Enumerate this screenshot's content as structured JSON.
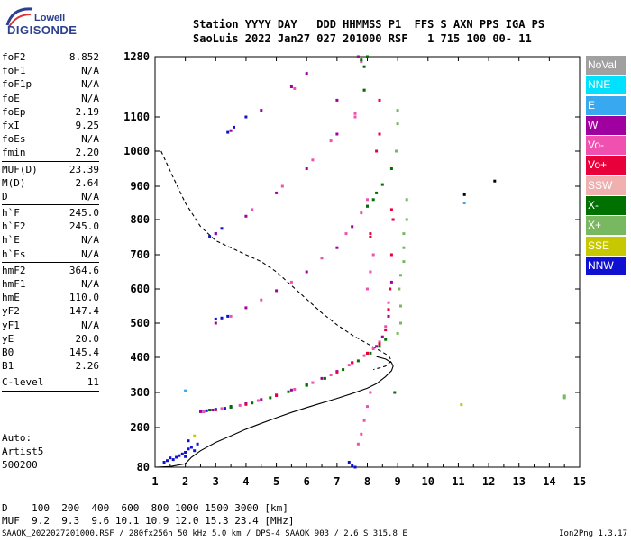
{
  "logo": {
    "line1": "Lowell",
    "line2": "DIGISONDE"
  },
  "header": {
    "row1": [
      "Station",
      "YYYY",
      "DAY",
      "DDD",
      "HHMMSS",
      "P1",
      "FFS",
      "S",
      "AXN",
      "PPS",
      "IGA",
      "PS"
    ],
    "row2": [
      "SaoLuis",
      "2022",
      "Jan27",
      "027",
      "201000",
      "RSF",
      "1",
      "715",
      "100",
      "00-",
      "11"
    ],
    "row1_text": "Station YYYY DAY   DDD HHMMSS P1  FFS S AXN PPS IGA PS",
    "row2_text": "SaoLuis 2022 Jan27 027 201000 RSF   1 715 100 00- 11"
  },
  "params": [
    [
      {
        "k": "foF2",
        "v": "8.852"
      },
      {
        "k": "foF1",
        "v": "N/A"
      },
      {
        "k": "foF1p",
        "v": "N/A"
      },
      {
        "k": "foE",
        "v": "N/A"
      },
      {
        "k": "foEp",
        "v": "2.19"
      },
      {
        "k": "fxI",
        "v": "9.25"
      },
      {
        "k": "foEs",
        "v": "N/A"
      },
      {
        "k": "fmin",
        "v": "2.20"
      }
    ],
    [
      {
        "k": "MUF(D)",
        "v": "23.39"
      },
      {
        "k": "M(D)",
        "v": "2.64"
      },
      {
        "k": "D",
        "v": "N/A"
      }
    ],
    [
      {
        "k": "h`F",
        "v": "245.0"
      },
      {
        "k": "h`F2",
        "v": "245.0"
      },
      {
        "k": "h`E",
        "v": "N/A"
      },
      {
        "k": "h`Es",
        "v": "N/A"
      }
    ],
    [
      {
        "k": "hmF2",
        "v": "364.6"
      },
      {
        "k": "hmF1",
        "v": "N/A"
      },
      {
        "k": "hmE",
        "v": "110.0"
      },
      {
        "k": "yF2",
        "v": "147.4"
      },
      {
        "k": "yF1",
        "v": "N/A"
      },
      {
        "k": "yE",
        "v": "20.0"
      },
      {
        "k": "B0",
        "v": "145.4"
      },
      {
        "k": "B1",
        "v": "2.26"
      }
    ],
    [
      {
        "k": "C-level",
        "v": "11"
      }
    ]
  ],
  "misc": {
    "auto": "Auto:",
    "artist": "Artist5",
    "code": "500200"
  },
  "legend": [
    {
      "label": "NoVal",
      "color": "#a0a0a0"
    },
    {
      "label": "NNE",
      "color": "#00e0ff"
    },
    {
      "label": "E",
      "color": "#38a8f0"
    },
    {
      "label": "W",
      "color": "#a000a0"
    },
    {
      "label": "Vo-",
      "color": "#f050b0"
    },
    {
      "label": "Vo+",
      "color": "#e8003a"
    },
    {
      "label": "SSW",
      "color": "#f0b0b0"
    },
    {
      "label": "X-",
      "color": "#007000"
    },
    {
      "label": "X+",
      "color": "#78b860"
    },
    {
      "label": "SSE",
      "color": "#c8c800"
    },
    {
      "label": "NNW",
      "color": "#1010d0"
    }
  ],
  "footer": {
    "d_label": "D",
    "d_values": [
      "100",
      "200",
      "400",
      "600",
      "800",
      "1000",
      "1500",
      "3000"
    ],
    "d_unit": "[km]",
    "muf_label": "MUF",
    "muf_values": [
      "9.2",
      "9.3",
      "9.6",
      "10.1",
      "10.9",
      "12.0",
      "15.3",
      "23.4"
    ],
    "muf_unit": "[MHz]",
    "d_text": "D    100  200  400  600  800 1000 1500 3000 [km]",
    "muf_text": "MUF  9.2  9.3  9.6 10.1 10.9 12.0 15.3 23.4 [MHz]",
    "fileinfo": "SAAOK_2022027201000.RSF / 280fx256h 50 kHz 5.0 km / DPS-4 SAAOK 903 / 2.6 S 315.8 E",
    "version": "Ion2Png 1.3.17"
  },
  "chart_data": {
    "type": "scatter",
    "xlabel": "",
    "ylabel": "",
    "xlim": [
      1,
      15
    ],
    "ylim": [
      80,
      1280
    ],
    "xticks": [
      "1",
      "2",
      "3",
      "4",
      "5",
      "6",
      "7",
      "8",
      "9",
      "10",
      "11",
      "12",
      "13",
      "14",
      "15"
    ],
    "yticks": [
      "80",
      "200",
      "300",
      "400",
      "500",
      "600",
      "700",
      "800",
      "900",
      "1000",
      "1100",
      "1280"
    ],
    "grid": false,
    "legend_position": "right",
    "series": [
      {
        "color": "#1010d0",
        "points": [
          [
            1.3,
            95
          ],
          [
            1.4,
            100
          ],
          [
            1.5,
            108
          ],
          [
            1.6,
            103
          ],
          [
            1.8,
            115
          ],
          [
            1.9,
            120
          ],
          [
            2.0,
            125
          ],
          [
            2.1,
            135
          ],
          [
            2.2,
            140
          ],
          [
            2.3,
            130
          ],
          [
            2.4,
            150
          ],
          [
            2.1,
            160
          ],
          [
            2.0,
            112
          ],
          [
            1.7,
            110
          ],
          [
            2.6,
            245
          ],
          [
            2.7,
            248
          ],
          [
            3.0,
            252
          ],
          [
            3.3,
            255
          ],
          [
            3.5,
            260
          ],
          [
            3.0,
            512
          ],
          [
            3.2,
            515
          ],
          [
            3.4,
            520
          ],
          [
            2.8,
            752
          ],
          [
            3.0,
            760
          ],
          [
            3.2,
            775
          ],
          [
            3.4,
            1055
          ],
          [
            3.6,
            1070
          ],
          [
            4.0,
            1100
          ],
          [
            7.5,
            85
          ],
          [
            7.4,
            95
          ],
          [
            7.6,
            80
          ]
        ]
      },
      {
        "color": "#a000a0",
        "points": [
          [
            2.5,
            245
          ],
          [
            2.9,
            250
          ],
          [
            3.5,
            258
          ],
          [
            4.0,
            268
          ],
          [
            4.5,
            280
          ],
          [
            5.0,
            293
          ],
          [
            5.5,
            307
          ],
          [
            6.0,
            322
          ],
          [
            6.5,
            340
          ],
          [
            7.0,
            360
          ],
          [
            7.5,
            385
          ],
          [
            8.0,
            412
          ],
          [
            8.3,
            432
          ],
          [
            8.5,
            460
          ],
          [
            8.7,
            520
          ],
          [
            8.8,
            620
          ],
          [
            8.85,
            800
          ],
          [
            3.0,
            500
          ],
          [
            4.0,
            545
          ],
          [
            5.0,
            595
          ],
          [
            6.0,
            650
          ],
          [
            7.0,
            720
          ],
          [
            7.5,
            780
          ],
          [
            8.0,
            840
          ],
          [
            3.0,
            760
          ],
          [
            4.0,
            810
          ],
          [
            5.0,
            880
          ],
          [
            6.0,
            950
          ],
          [
            7.0,
            1050
          ],
          [
            3.5,
            1060
          ],
          [
            4.5,
            1120
          ],
          [
            5.5,
            1190
          ],
          [
            6.0,
            1230
          ],
          [
            7.0,
            1150
          ],
          [
            7.7,
            1280
          ]
        ]
      },
      {
        "color": "#f050b0",
        "points": [
          [
            2.6,
            245
          ],
          [
            3.2,
            254
          ],
          [
            3.8,
            263
          ],
          [
            4.4,
            277
          ],
          [
            5.0,
            292
          ],
          [
            5.6,
            309
          ],
          [
            6.2,
            328
          ],
          [
            6.8,
            350
          ],
          [
            7.4,
            378
          ],
          [
            7.9,
            405
          ],
          [
            8.2,
            425
          ],
          [
            8.4,
            445
          ],
          [
            8.6,
            490
          ],
          [
            8.7,
            560
          ],
          [
            3.5,
            520
          ],
          [
            4.5,
            568
          ],
          [
            5.5,
            620
          ],
          [
            6.5,
            690
          ],
          [
            7.3,
            760
          ],
          [
            7.8,
            820
          ],
          [
            8.0,
            860
          ],
          [
            4.2,
            830
          ],
          [
            5.2,
            900
          ],
          [
            6.2,
            975
          ],
          [
            6.8,
            1030
          ],
          [
            7.6,
            1100
          ],
          [
            7.9,
            1180
          ],
          [
            5.6,
            1185
          ],
          [
            7.8,
            180
          ],
          [
            7.9,
            220
          ],
          [
            7.7,
            150
          ],
          [
            8.0,
            260
          ],
          [
            8.1,
            300
          ],
          [
            8.0,
            600
          ],
          [
            8.1,
            650
          ],
          [
            8.2,
            700
          ],
          [
            7.6,
            1110
          ],
          [
            7.8,
            1265
          ]
        ]
      },
      {
        "color": "#e8003a",
        "points": [
          [
            3.0,
            250
          ],
          [
            4.0,
            266
          ],
          [
            5.0,
            291
          ],
          [
            6.0,
            322
          ],
          [
            7.0,
            358
          ],
          [
            7.5,
            385
          ],
          [
            8.0,
            412
          ],
          [
            8.4,
            440
          ],
          [
            8.6,
            480
          ],
          [
            8.7,
            540
          ],
          [
            8.75,
            600
          ],
          [
            8.8,
            700
          ],
          [
            8.85,
            800
          ],
          [
            8.8,
            830
          ],
          [
            8.1,
            750
          ],
          [
            8.1,
            760
          ],
          [
            8.3,
            1000
          ],
          [
            8.4,
            1050
          ],
          [
            8.4,
            1150
          ]
        ]
      },
      {
        "color": "#007000",
        "points": [
          [
            2.8,
            250
          ],
          [
            3.5,
            258
          ],
          [
            4.2,
            270
          ],
          [
            4.8,
            285
          ],
          [
            5.4,
            302
          ],
          [
            6.0,
            320
          ],
          [
            6.6,
            340
          ],
          [
            7.2,
            365
          ],
          [
            7.7,
            390
          ],
          [
            8.1,
            412
          ],
          [
            8.4,
            432
          ],
          [
            8.6,
            452
          ],
          [
            8.9,
            300
          ],
          [
            8.0,
            840
          ],
          [
            8.2,
            860
          ],
          [
            8.3,
            880
          ],
          [
            8.5,
            905
          ],
          [
            8.8,
            950
          ],
          [
            7.8,
            1270
          ],
          [
            7.9,
            1250
          ],
          [
            8.0,
            1280
          ],
          [
            7.9,
            1180
          ]
        ]
      },
      {
        "color": "#78b860",
        "points": [
          [
            9.0,
            470
          ],
          [
            9.1,
            500
          ],
          [
            9.1,
            550
          ],
          [
            9.05,
            600
          ],
          [
            9.1,
            640
          ],
          [
            9.2,
            680
          ],
          [
            9.2,
            720
          ],
          [
            9.2,
            760
          ],
          [
            9.3,
            800
          ],
          [
            9.3,
            860
          ],
          [
            8.95,
            1000
          ],
          [
            9.0,
            1080
          ],
          [
            9.0,
            1120
          ],
          [
            14.5,
            290
          ],
          [
            14.5,
            285
          ]
        ]
      },
      {
        "color": "#38a8f0",
        "points": [
          [
            2.0,
            305
          ],
          [
            11.2,
            850
          ]
        ]
      },
      {
        "color": "#000000",
        "points": [
          [
            12.2,
            915
          ],
          [
            11.2,
            875
          ]
        ]
      },
      {
        "color": "#c8c800",
        "points": [
          [
            11.1,
            265
          ],
          [
            2.3,
            175
          ]
        ]
      }
    ],
    "profile_curve": {
      "style": "solid",
      "x": [
        1.0,
        1.5,
        2.0,
        2.2,
        2.5,
        3.0,
        3.5,
        4.0,
        4.5,
        5.0,
        5.5,
        6.0,
        6.5,
        7.0,
        7.5,
        8.0,
        8.3,
        8.6,
        8.8,
        8.85,
        8.8,
        8.6,
        8.3
      ],
      "y": [
        80,
        82,
        90,
        110,
        130,
        155,
        175,
        195,
        212,
        228,
        243,
        257,
        270,
        283,
        297,
        312,
        325,
        345,
        362,
        375,
        385,
        395,
        402
      ]
    },
    "dashed_curve": {
      "style": "dashed",
      "x": [
        1.2,
        1.6,
        2.0,
        2.5,
        3.0,
        3.5,
        4.0,
        4.5,
        5.0,
        5.5,
        6.0,
        6.5,
        7.0,
        7.5,
        8.0,
        8.4,
        8.7,
        8.8,
        8.6,
        8.2
      ],
      "y": [
        1000,
        925,
        850,
        780,
        740,
        720,
        700,
        680,
        650,
        610,
        570,
        530,
        495,
        465,
        440,
        420,
        405,
        390,
        375,
        365
      ]
    }
  }
}
